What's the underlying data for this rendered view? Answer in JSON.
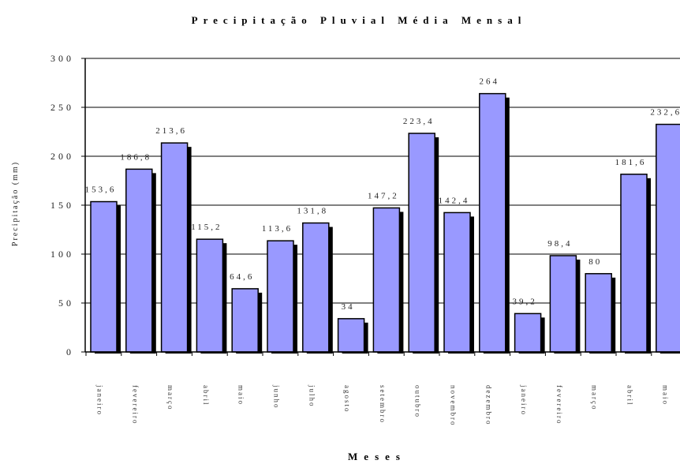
{
  "chart_data": {
    "type": "bar",
    "title": "Precipitação Pluvial Média Mensal",
    "xlabel": "Meses",
    "ylabel": "Precipitação (mm)",
    "ylim": [
      0,
      300
    ],
    "yticks": [
      0,
      50,
      100,
      150,
      200,
      250,
      300
    ],
    "ytick_labels": [
      "0",
      "50",
      "100",
      "150",
      "200",
      "250",
      "300"
    ],
    "grid": true,
    "categories": [
      "janeiro",
      "fevereiro",
      "março",
      "abril",
      "maio",
      "junho",
      "julho",
      "agosto",
      "setembro",
      "outubro",
      "novembro",
      "dezembro",
      "janeiro",
      "fevereiro",
      "março",
      "abril",
      "maio"
    ],
    "values": [
      153.6,
      186.8,
      213.6,
      115.2,
      64.6,
      113.6,
      131.8,
      34,
      147.2,
      223.4,
      142.4,
      264,
      39.2,
      98.4,
      80,
      181.6,
      232.6
    ],
    "value_labels": [
      "153,6",
      "186,8",
      "213,6",
      "115,2",
      "64,6",
      "113,6",
      "131,8",
      "34",
      "147,2",
      "223,4",
      "142,4",
      "264",
      "39,2",
      "98,4",
      "80",
      "181,6",
      "232,6"
    ],
    "bar_color": "#9999ff",
    "shadow_color": "#000000"
  }
}
